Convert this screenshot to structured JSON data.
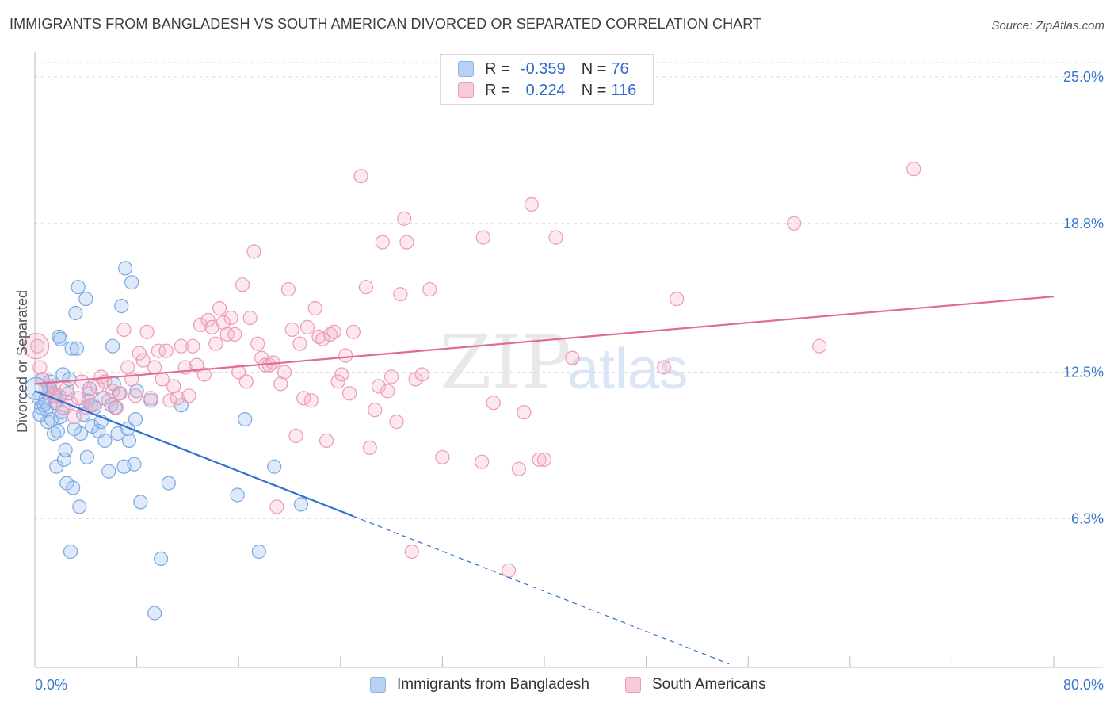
{
  "title": "IMMIGRANTS FROM BANGLADESH VS SOUTH AMERICAN DIVORCED OR SEPARATED CORRELATION CHART",
  "source": "Source: ZipAtlas.com",
  "watermark": {
    "zip": "ZIP",
    "atlas": "atlas"
  },
  "legend": {
    "series1": {
      "r_label": "R =",
      "r_value": "-0.359",
      "n_label": "N =",
      "n_value": "76",
      "color": "#8bb4e8",
      "fill": "#b9d2f3"
    },
    "series2": {
      "r_label": "R =",
      "r_value": "0.224",
      "n_label": "N =",
      "n_value": "116",
      "color": "#ef9ab7",
      "fill": "#f8c9d8"
    }
  },
  "bottom_legend": [
    "Immigrants from Bangladesh",
    "South Americans"
  ],
  "chart_data": {
    "type": "scatter",
    "title": "IMMIGRANTS FROM BANGLADESH VS SOUTH AMERICAN DIVORCED OR SEPARATED CORRELATION CHART",
    "xlabel": "",
    "ylabel": "Divorced or Separated",
    "xlim": [
      0,
      80
    ],
    "ylim": [
      0,
      26
    ],
    "x_tick_labels": [
      "0.0%",
      "80.0%"
    ],
    "y_ticks": [
      6.3,
      12.5,
      18.8,
      25.0
    ],
    "y_tick_labels": [
      "6.3%",
      "12.5%",
      "18.8%",
      "25.0%"
    ],
    "grid": true,
    "legend_position": "top-center",
    "series": [
      {
        "name": "Immigrants from Bangladesh",
        "color": "#6fa0df",
        "trend": {
          "x1": 0,
          "y1": 11.7,
          "x2": 25,
          "y2": 6.4,
          "dashed_to_x": 80
        },
        "points": [
          [
            0.3,
            11.4
          ],
          [
            0.5,
            11.0
          ],
          [
            0.6,
            12.2
          ],
          [
            0.8,
            11.3
          ],
          [
            0.9,
            10.9
          ],
          [
            1.0,
            10.4
          ],
          [
            1.1,
            11.9
          ],
          [
            1.2,
            12.1
          ],
          [
            1.3,
            10.5
          ],
          [
            1.4,
            11.6
          ],
          [
            1.5,
            9.9
          ],
          [
            1.6,
            11.2
          ],
          [
            1.7,
            8.5
          ],
          [
            1.8,
            10.0
          ],
          [
            1.9,
            14.0
          ],
          [
            2.0,
            13.9
          ],
          [
            2.1,
            10.8
          ],
          [
            2.2,
            12.4
          ],
          [
            2.3,
            8.8
          ],
          [
            2.4,
            9.2
          ],
          [
            2.5,
            7.8
          ],
          [
            2.6,
            11.6
          ],
          [
            2.7,
            12.2
          ],
          [
            2.8,
            4.9
          ],
          [
            2.9,
            13.5
          ],
          [
            3.0,
            7.6
          ],
          [
            3.2,
            15.0
          ],
          [
            3.3,
            13.5
          ],
          [
            3.4,
            16.1
          ],
          [
            3.5,
            6.8
          ],
          [
            3.6,
            9.9
          ],
          [
            3.8,
            10.7
          ],
          [
            4.0,
            15.6
          ],
          [
            4.1,
            8.9
          ],
          [
            4.2,
            11.3
          ],
          [
            4.3,
            11.8
          ],
          [
            4.5,
            10.2
          ],
          [
            4.7,
            11.0
          ],
          [
            5.0,
            10.0
          ],
          [
            5.2,
            10.4
          ],
          [
            5.4,
            11.4
          ],
          [
            5.5,
            9.6
          ],
          [
            5.8,
            8.3
          ],
          [
            6.0,
            11.1
          ],
          [
            6.1,
            13.6
          ],
          [
            6.3,
            11.0
          ],
          [
            6.5,
            9.9
          ],
          [
            6.6,
            11.6
          ],
          [
            6.8,
            15.3
          ],
          [
            7.0,
            8.5
          ],
          [
            7.1,
            16.9
          ],
          [
            7.3,
            10.1
          ],
          [
            7.4,
            9.6
          ],
          [
            7.6,
            16.3
          ],
          [
            7.8,
            8.6
          ],
          [
            7.9,
            10.5
          ],
          [
            8.0,
            11.7
          ],
          [
            8.3,
            7.0
          ],
          [
            9.1,
            11.3
          ],
          [
            9.4,
            2.3
          ],
          [
            9.9,
            4.6
          ],
          [
            10.5,
            7.8
          ],
          [
            11.5,
            11.1
          ],
          [
            15.9,
            7.3
          ],
          [
            16.5,
            10.5
          ],
          [
            17.6,
            4.9
          ],
          [
            18.8,
            8.5
          ],
          [
            20.9,
            6.9
          ],
          [
            1.2,
            11.8
          ],
          [
            0.7,
            11.1
          ],
          [
            2.0,
            10.6
          ],
          [
            3.1,
            10.1
          ],
          [
            6.2,
            12.0
          ],
          [
            4.4,
            11.1
          ],
          [
            0.4,
            10.7
          ],
          [
            1.5,
            11.5
          ]
        ]
      },
      {
        "name": "South Americans",
        "color": "#ea87a8",
        "trend": {
          "x1": 0,
          "y1": 12.0,
          "x2": 80,
          "y2": 15.7
        },
        "points": [
          [
            0.2,
            13.6
          ],
          [
            0.4,
            12.7
          ],
          [
            0.6,
            12.2
          ],
          [
            0.9,
            11.8
          ],
          [
            1.1,
            11.6
          ],
          [
            1.4,
            11.9
          ],
          [
            1.6,
            11.3
          ],
          [
            1.9,
            11.5
          ],
          [
            2.2,
            11.0
          ],
          [
            2.5,
            11.8
          ],
          [
            2.8,
            11.2
          ],
          [
            3.1,
            10.6
          ],
          [
            3.4,
            11.4
          ],
          [
            3.7,
            12.1
          ],
          [
            4.0,
            11.0
          ],
          [
            4.3,
            11.6
          ],
          [
            4.6,
            11.1
          ],
          [
            4.9,
            11.9
          ],
          [
            5.2,
            12.3
          ],
          [
            5.5,
            12.1
          ],
          [
            5.8,
            11.3
          ],
          [
            6.1,
            11.7
          ],
          [
            6.4,
            11.0
          ],
          [
            6.7,
            11.6
          ],
          [
            7.0,
            14.3
          ],
          [
            7.3,
            12.7
          ],
          [
            7.6,
            12.2
          ],
          [
            7.9,
            11.5
          ],
          [
            8.2,
            13.3
          ],
          [
            8.5,
            13.0
          ],
          [
            8.8,
            14.2
          ],
          [
            9.1,
            11.4
          ],
          [
            9.4,
            12.7
          ],
          [
            9.7,
            13.4
          ],
          [
            10.0,
            12.2
          ],
          [
            10.3,
            13.4
          ],
          [
            10.6,
            11.3
          ],
          [
            10.9,
            11.9
          ],
          [
            11.2,
            11.4
          ],
          [
            11.5,
            13.6
          ],
          [
            11.8,
            12.7
          ],
          [
            12.1,
            11.5
          ],
          [
            12.4,
            13.6
          ],
          [
            12.7,
            12.8
          ],
          [
            13.0,
            14.5
          ],
          [
            13.3,
            12.4
          ],
          [
            13.6,
            14.7
          ],
          [
            13.9,
            14.4
          ],
          [
            14.2,
            13.7
          ],
          [
            14.5,
            15.2
          ],
          [
            14.8,
            14.6
          ],
          [
            15.1,
            14.1
          ],
          [
            15.4,
            14.8
          ],
          [
            15.7,
            14.1
          ],
          [
            16.0,
            12.5
          ],
          [
            16.3,
            16.2
          ],
          [
            16.6,
            12.1
          ],
          [
            16.9,
            14.8
          ],
          [
            17.2,
            17.6
          ],
          [
            17.5,
            13.7
          ],
          [
            17.8,
            13.1
          ],
          [
            18.1,
            12.8
          ],
          [
            18.4,
            12.8
          ],
          [
            18.7,
            12.9
          ],
          [
            19.0,
            6.8
          ],
          [
            19.3,
            12.0
          ],
          [
            19.6,
            12.5
          ],
          [
            19.9,
            16.0
          ],
          [
            20.2,
            14.3
          ],
          [
            20.5,
            9.8
          ],
          [
            20.8,
            13.7
          ],
          [
            21.1,
            11.4
          ],
          [
            21.4,
            14.4
          ],
          [
            21.7,
            11.3
          ],
          [
            22.0,
            15.2
          ],
          [
            22.3,
            14.0
          ],
          [
            22.6,
            13.9
          ],
          [
            22.9,
            9.6
          ],
          [
            23.2,
            14.1
          ],
          [
            23.5,
            14.2
          ],
          [
            23.8,
            12.1
          ],
          [
            24.1,
            12.4
          ],
          [
            24.4,
            13.2
          ],
          [
            24.7,
            11.6
          ],
          [
            25.0,
            14.2
          ],
          [
            25.6,
            20.8
          ],
          [
            26.0,
            16.1
          ],
          [
            26.3,
            9.3
          ],
          [
            26.7,
            10.9
          ],
          [
            27.0,
            11.9
          ],
          [
            27.3,
            18.0
          ],
          [
            27.7,
            11.7
          ],
          [
            28.0,
            12.3
          ],
          [
            28.4,
            10.4
          ],
          [
            28.7,
            15.8
          ],
          [
            29.0,
            19.0
          ],
          [
            29.2,
            18.0
          ],
          [
            29.6,
            4.9
          ],
          [
            29.9,
            12.2
          ],
          [
            30.4,
            12.4
          ],
          [
            31.0,
            16.0
          ],
          [
            32.0,
            8.9
          ],
          [
            35.1,
            8.7
          ],
          [
            35.2,
            18.2
          ],
          [
            36.0,
            11.2
          ],
          [
            37.2,
            4.1
          ],
          [
            38.0,
            8.4
          ],
          [
            38.4,
            10.8
          ],
          [
            39.0,
            19.6
          ],
          [
            39.6,
            8.8
          ],
          [
            40.0,
            8.8
          ],
          [
            40.9,
            18.2
          ],
          [
            42.2,
            13.1
          ],
          [
            49.4,
            12.7
          ],
          [
            50.4,
            15.6
          ],
          [
            59.6,
            18.8
          ],
          [
            61.6,
            13.6
          ],
          [
            69.0,
            21.1
          ]
        ]
      }
    ]
  }
}
